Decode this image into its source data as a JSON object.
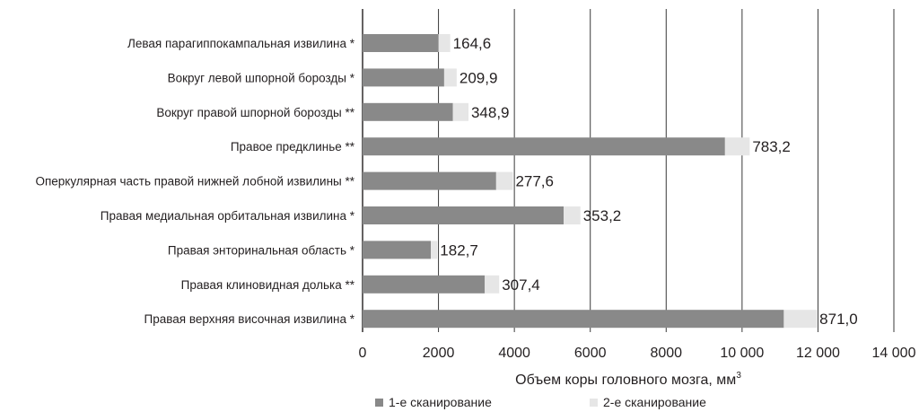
{
  "chart_data": {
    "type": "bar",
    "orientation": "horizontal",
    "stacked": true,
    "categories": [
      "Левая парагиппокампальная извилина *",
      "Вокруг левой шпорной борозды *",
      "Вокруг правой шпорной борозды **",
      "Правое предклинье **",
      "Оперкулярная часть правой нижней лобной извилины **",
      "Правая медиальная орбитальная извилина *",
      "Правая энторинальная область *",
      "Правая клиновидная долька **",
      "Правая верхняя височная извилина *"
    ],
    "series": [
      {
        "name": "1-е сканирование",
        "values": [
          2000,
          2150,
          2380,
          9550,
          3520,
          5300,
          1800,
          3220,
          11100
        ],
        "color": "#898989"
      },
      {
        "name": "2-е сканирование",
        "values": [
          310,
          330,
          410,
          650,
          440,
          440,
          170,
          380,
          870
        ],
        "color": "#e6e6e6"
      }
    ],
    "data_labels": [
      "164,6",
      "209,9",
      "348,9",
      "783,2",
      "277,6",
      "353,2",
      "182,7",
      "307,4",
      "871,0"
    ],
    "x_ticks": [
      "0",
      "2000",
      "4000",
      "6000",
      "8000",
      "10 000",
      "12 000",
      "14 000"
    ],
    "xlim": [
      0,
      14000
    ],
    "xlabel": "Объем коры головного мозга, мм",
    "xlabel_superscript": "3",
    "ylabel": "",
    "grid": "vertical",
    "legend_position": "bottom"
  }
}
